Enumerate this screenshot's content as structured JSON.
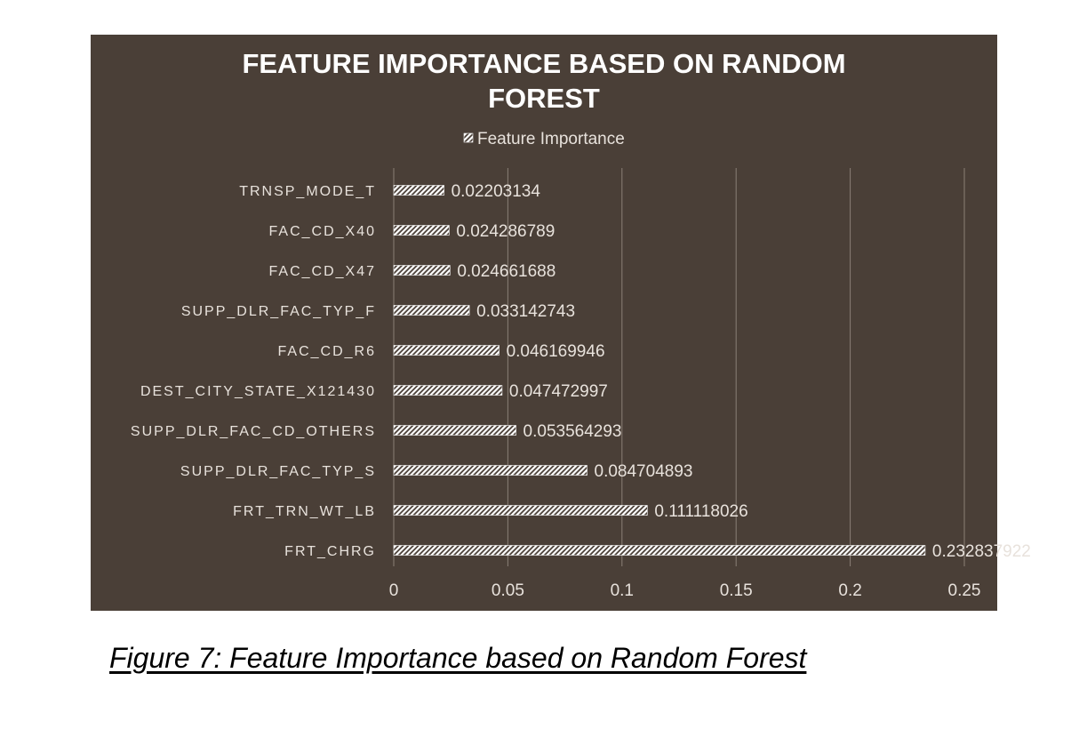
{
  "chart_data": {
    "type": "bar",
    "orientation": "horizontal",
    "title_lines": [
      "FEATURE IMPORTANCE BASED ON RANDOM",
      "FOREST"
    ],
    "legend": {
      "entry": "Feature Importance",
      "placement": "top"
    },
    "categories": [
      "TRNSP_MODE_T",
      "FAC_CD_X40",
      "FAC_CD_X47",
      "SUPP_DLR_FAC_TYP_F",
      "FAC_CD_R6",
      "DEST_CITY_STATE_X121430",
      "SUPP_DLR_FAC_CD_OTHERS",
      "SUPP_DLR_FAC_TYP_S",
      "FRT_TRN_WT_LB",
      "FRT_CHRG"
    ],
    "series": [
      {
        "name": "Feature Importance",
        "values": [
          0.02203134,
          0.024286789,
          0.024661688,
          0.033142743,
          0.046169946,
          0.047472997,
          0.053564293,
          0.084704893,
          0.111118026,
          0.232837922
        ],
        "labels": [
          "0.02203134",
          "0.024286789",
          "0.024661688",
          "0.033142743",
          "0.046169946",
          "0.047472997",
          "0.053564293",
          "0.084704893",
          "0.111118026",
          "0.232837922"
        ]
      }
    ],
    "xlim": [
      0,
      0.25
    ],
    "xticks": [
      {
        "value": 0,
        "label": "0"
      },
      {
        "value": 0.05,
        "label": "0.05"
      },
      {
        "value": 0.1,
        "label": "0.1"
      },
      {
        "value": 0.15,
        "label": "0.15"
      },
      {
        "value": 0.2,
        "label": "0.2"
      },
      {
        "value": 0.25,
        "label": "0.25"
      }
    ],
    "grid": true,
    "colors": {
      "background": "#4a3f37",
      "bar_fill": "#ffffff",
      "text": "#e8e2dc",
      "grid": "#8a7f76"
    }
  },
  "caption": "Figure 7: Feature Importance based on Random Forest"
}
